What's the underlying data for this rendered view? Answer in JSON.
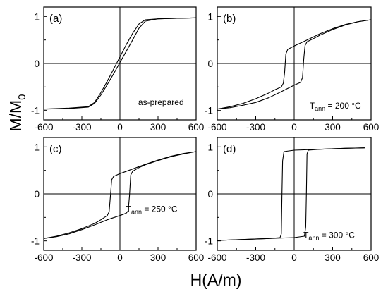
{
  "figure": {
    "ylabel_main": "M/M",
    "ylabel_sub": "0",
    "xlabel": "H(A/m)"
  },
  "chart_data": [
    {
      "type": "line",
      "panel_label": "(a)",
      "annotation": {
        "text": "as-prepared",
        "sub": "",
        "suffix": ""
      },
      "xlim": [
        -600,
        600
      ],
      "ylim": [
        -1.2,
        1.2
      ],
      "xticks": [
        -600,
        -300,
        0,
        300,
        600
      ],
      "yticks": [
        -1,
        0,
        1
      ],
      "grid": false,
      "series": [
        {
          "x": [
            -600,
            -400,
            -250,
            -200,
            -150,
            -100,
            -50,
            0,
            50,
            100,
            150,
            200,
            300,
            450,
            600
          ],
          "y": [
            -0.97,
            -0.96,
            -0.93,
            -0.85,
            -0.67,
            -0.45,
            -0.22,
            0.02,
            0.26,
            0.5,
            0.75,
            0.9,
            0.95,
            0.96,
            0.97
          ]
        },
        {
          "x": [
            600,
            450,
            300,
            200,
            150,
            100,
            50,
            0,
            -50,
            -100,
            -150,
            -200,
            -250,
            -400,
            -600
          ],
          "y": [
            0.97,
            0.96,
            0.95,
            0.93,
            0.84,
            0.64,
            0.4,
            0.14,
            -0.12,
            -0.38,
            -0.62,
            -0.83,
            -0.92,
            -0.95,
            -0.97
          ]
        }
      ]
    },
    {
      "type": "line",
      "panel_label": "(b)",
      "annotation": {
        "text": "T",
        "sub": "ann",
        "suffix": " = 200 °C"
      },
      "xlim": [
        -600,
        600
      ],
      "ylim": [
        -1.2,
        1.2
      ],
      "xticks": [
        -600,
        -300,
        0,
        300,
        600
      ],
      "yticks": [
        -1,
        0,
        1
      ],
      "grid": false,
      "series": [
        {
          "x": [
            -600,
            -500,
            -400,
            -300,
            -200,
            -100,
            0,
            50,
            65,
            75,
            85,
            100,
            150,
            200,
            300,
            400,
            500,
            600
          ],
          "y": [
            -0.97,
            -0.94,
            -0.89,
            -0.83,
            -0.73,
            -0.6,
            -0.46,
            -0.4,
            -0.3,
            0.1,
            0.38,
            0.46,
            0.53,
            0.6,
            0.72,
            0.82,
            0.89,
            0.93
          ]
        },
        {
          "x": [
            600,
            500,
            400,
            300,
            200,
            100,
            0,
            -50,
            -65,
            -75,
            -85,
            -100,
            -150,
            -200,
            -300,
            -400,
            -500,
            -600
          ],
          "y": [
            0.93,
            0.89,
            0.83,
            0.74,
            0.63,
            0.5,
            0.37,
            0.3,
            0.2,
            -0.2,
            -0.42,
            -0.5,
            -0.56,
            -0.63,
            -0.75,
            -0.85,
            -0.92,
            -0.97
          ]
        }
      ]
    },
    {
      "type": "line",
      "panel_label": "(c)",
      "annotation": {
        "text": "T",
        "sub": "ann",
        "suffix": " = 250 °C"
      },
      "xlim": [
        -600,
        600
      ],
      "ylim": [
        -1.2,
        1.2
      ],
      "xticks": [
        -600,
        -300,
        0,
        300,
        600
      ],
      "yticks": [
        -1,
        0,
        1
      ],
      "grid": false,
      "series": [
        {
          "x": [
            -600,
            -500,
            -400,
            -300,
            -200,
            -100,
            0,
            50,
            65,
            75,
            85,
            100,
            150,
            200,
            300,
            400,
            500,
            600
          ],
          "y": [
            -0.95,
            -0.91,
            -0.85,
            -0.76,
            -0.66,
            -0.55,
            -0.46,
            -0.41,
            -0.36,
            -0.05,
            0.4,
            0.48,
            0.56,
            0.62,
            0.71,
            0.79,
            0.85,
            0.9
          ]
        },
        {
          "x": [
            600,
            500,
            400,
            300,
            200,
            100,
            0,
            -50,
            -65,
            -75,
            -85,
            -100,
            -150,
            -200,
            -300,
            -400,
            -500,
            -600
          ],
          "y": [
            0.9,
            0.86,
            0.8,
            0.72,
            0.63,
            0.53,
            0.43,
            0.37,
            0.3,
            -0.05,
            -0.38,
            -0.46,
            -0.55,
            -0.63,
            -0.74,
            -0.83,
            -0.9,
            -0.95
          ]
        }
      ]
    },
    {
      "type": "line",
      "panel_label": "(d)",
      "annotation": {
        "text": "T",
        "sub": "ann",
        "suffix": " = 300 °C"
      },
      "xlim": [
        -600,
        600
      ],
      "ylim": [
        -1.2,
        1.2
      ],
      "xticks": [
        -600,
        -300,
        0,
        300,
        600
      ],
      "yticks": [
        -1,
        0,
        1
      ],
      "grid": false,
      "series": [
        {
          "x": [
            -600,
            -400,
            -200,
            0,
            80,
            90,
            95,
            100,
            110,
            200,
            400,
            550
          ],
          "y": [
            -0.99,
            -0.97,
            -0.95,
            -0.93,
            -0.9,
            -0.7,
            0.0,
            0.85,
            0.93,
            0.95,
            0.97,
            0.98
          ]
        },
        {
          "x": [
            550,
            400,
            200,
            0,
            -80,
            -90,
            -95,
            -100,
            -110,
            -200,
            -400,
            -600
          ],
          "y": [
            0.98,
            0.97,
            0.95,
            0.93,
            0.9,
            0.7,
            0.0,
            -0.85,
            -0.93,
            -0.95,
            -0.97,
            -0.99
          ]
        }
      ]
    }
  ]
}
